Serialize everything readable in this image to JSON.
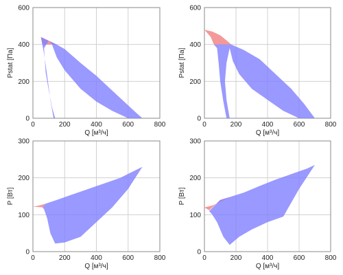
{
  "colors": {
    "region_blue": "#8080ff",
    "region_red": "#f08080",
    "grid": "#d0d0d0",
    "frame": "#888888"
  },
  "chart_data": [
    {
      "type": "area",
      "xlabel": "Q [м³/ч]",
      "ylabel": "Pstat [Па]",
      "xlim": [
        0,
        800
      ],
      "ylim": [
        0,
        600
      ],
      "xticks": [
        "0",
        "200",
        "400",
        "600",
        "800"
      ],
      "yticks": [
        "0",
        "200",
        "400",
        "600"
      ],
      "grid": true,
      "regions": [
        {
          "color": "red",
          "points": [
            [
              0,
              455
            ],
            [
              50,
              440
            ],
            [
              100,
              420
            ],
            [
              150,
              400
            ],
            [
              60,
              400
            ],
            [
              50,
              440
            ]
          ]
        },
        {
          "color": "blue",
          "points": [
            [
              50,
              440
            ],
            [
              150,
              400
            ],
            [
              200,
              375
            ],
            [
              300,
              300
            ],
            [
              400,
              230
            ],
            [
              500,
              150
            ],
            [
              600,
              70
            ],
            [
              650,
              30
            ],
            [
              690,
              0
            ],
            [
              600,
              0
            ],
            [
              500,
              40
            ],
            [
              400,
              90
            ],
            [
              300,
              160
            ],
            [
              200,
              260
            ],
            [
              150,
              330
            ],
            [
              120,
              400
            ],
            [
              100,
              420
            ],
            [
              70,
              380
            ],
            [
              80,
              250
            ],
            [
              100,
              150
            ],
            [
              120,
              60
            ],
            [
              140,
              0
            ],
            [
              130,
              0
            ],
            [
              110,
              100
            ],
            [
              90,
              230
            ],
            [
              70,
              350
            ]
          ]
        }
      ]
    },
    {
      "type": "area",
      "xlabel": "Q [м³/ч]",
      "ylabel": "Pstat [Па]",
      "xlim": [
        0,
        800
      ],
      "ylim": [
        0,
        600
      ],
      "xticks": [
        "0",
        "200",
        "400",
        "600",
        "800"
      ],
      "yticks": [
        "0",
        "200",
        "400",
        "600"
      ],
      "grid": true,
      "regions": [
        {
          "color": "red",
          "points": [
            [
              0,
              480
            ],
            [
              50,
              470
            ],
            [
              100,
              450
            ],
            [
              150,
              415
            ],
            [
              170,
              400
            ],
            [
              60,
              400
            ],
            [
              40,
              440
            ]
          ]
        },
        {
          "color": "blue",
          "points": [
            [
              60,
              400
            ],
            [
              170,
              400
            ],
            [
              250,
              370
            ],
            [
              350,
              320
            ],
            [
              450,
              240
            ],
            [
              550,
              160
            ],
            [
              630,
              80
            ],
            [
              700,
              0
            ],
            [
              600,
              0
            ],
            [
              500,
              40
            ],
            [
              400,
              100
            ],
            [
              300,
              160
            ],
            [
              220,
              240
            ],
            [
              180,
              310
            ],
            [
              160,
              380
            ],
            [
              140,
              300
            ],
            [
              130,
              200
            ],
            [
              140,
              100
            ],
            [
              160,
              0
            ],
            [
              140,
              0
            ],
            [
              120,
              90
            ],
            [
              100,
              200
            ],
            [
              90,
              300
            ],
            [
              80,
              380
            ]
          ]
        }
      ]
    },
    {
      "type": "area",
      "xlabel": "Q [м³/ч]",
      "ylabel": "P [Вт]",
      "xlim": [
        0,
        800
      ],
      "ylim": [
        0,
        300
      ],
      "xticks": [
        "0",
        "200",
        "400",
        "600",
        "800"
      ],
      "yticks": [
        "0",
        "100",
        "200",
        "300"
      ],
      "grid": true,
      "regions": [
        {
          "color": "red",
          "points": [
            [
              0,
              122
            ],
            [
              40,
              125
            ],
            [
              80,
              130
            ],
            [
              60,
              120
            ]
          ]
        },
        {
          "color": "blue",
          "points": [
            [
              60,
              120
            ],
            [
              80,
              130
            ],
            [
              150,
              140
            ],
            [
              250,
              155
            ],
            [
              350,
              170
            ],
            [
              450,
              185
            ],
            [
              550,
              200
            ],
            [
              620,
              215
            ],
            [
              690,
              230
            ],
            [
              600,
              170
            ],
            [
              500,
              120
            ],
            [
              400,
              80
            ],
            [
              300,
              40
            ],
            [
              200,
              25
            ],
            [
              140,
              22
            ],
            [
              110,
              50
            ],
            [
              90,
              90
            ],
            [
              70,
              115
            ]
          ]
        }
      ]
    },
    {
      "type": "area",
      "xlabel": "Q [м³/ч]",
      "ylabel": "P [Вт]",
      "xlim": [
        0,
        800
      ],
      "ylim": [
        0,
        300
      ],
      "xticks": [
        "0",
        "200",
        "400",
        "600",
        "800"
      ],
      "yticks": [
        "0",
        "100",
        "200",
        "300"
      ],
      "grid": true,
      "regions": [
        {
          "color": "red",
          "points": [
            [
              0,
              120
            ],
            [
              50,
              125
            ],
            [
              100,
              135
            ],
            [
              160,
              148
            ],
            [
              100,
              140
            ],
            [
              30,
              112
            ]
          ]
        },
        {
          "color": "blue",
          "points": [
            [
              30,
              110
            ],
            [
              100,
              140
            ],
            [
              160,
              148
            ],
            [
              250,
              160
            ],
            [
              350,
              178
            ],
            [
              450,
              195
            ],
            [
              550,
              210
            ],
            [
              650,
              225
            ],
            [
              700,
              235
            ],
            [
              600,
              170
            ],
            [
              500,
              95
            ],
            [
              400,
              80
            ],
            [
              300,
              60
            ],
            [
              220,
              40
            ],
            [
              160,
              18
            ],
            [
              120,
              40
            ],
            [
              80,
              80
            ],
            [
              50,
              100
            ]
          ]
        }
      ]
    }
  ]
}
